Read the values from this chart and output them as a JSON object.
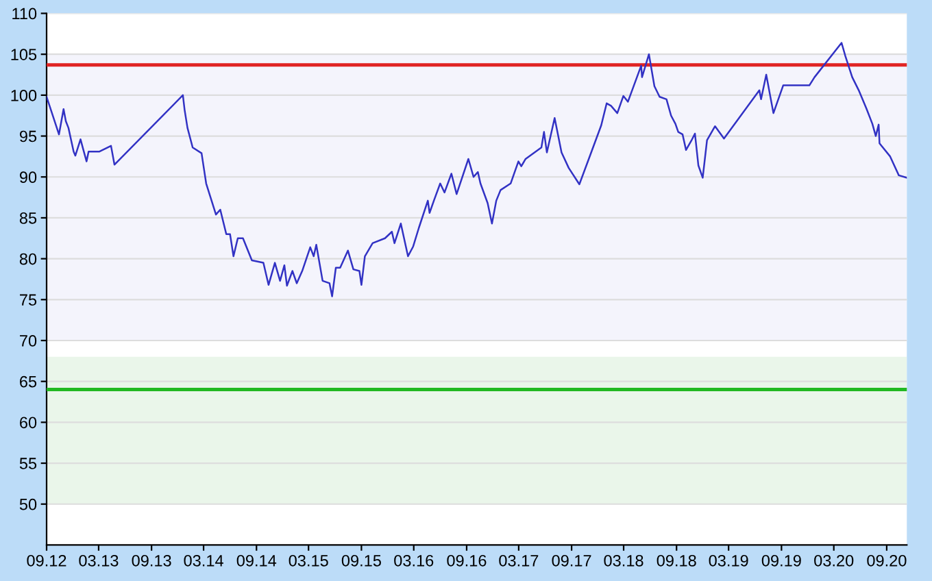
{
  "chart_data": {
    "type": "line",
    "x": [
      "2012-09-01",
      "2012-09-14",
      "2012-10-14",
      "2012-10-30",
      "2012-11-07",
      "2012-11-16",
      "2012-12-04",
      "2012-12-10",
      "2012-12-28",
      "2013-01-07",
      "2013-01-18",
      "2013-01-25",
      "2013-03-04",
      "2013-04-13",
      "2013-04-25",
      "2013-12-19",
      "2013-12-25",
      "2014-01-04",
      "2014-01-22",
      "2014-02-22",
      "2014-03-10",
      "2014-04-13",
      "2014-04-28",
      "2014-05-19",
      "2014-06-01",
      "2014-06-13",
      "2014-06-28",
      "2014-07-16",
      "2014-08-16",
      "2014-09-25",
      "2014-10-13",
      "2014-11-04",
      "2014-11-22",
      "2014-12-07",
      "2014-12-16",
      "2015-01-04",
      "2015-01-19",
      "2015-02-07",
      "2015-03-07",
      "2015-03-19",
      "2015-03-28",
      "2015-04-19",
      "2015-05-13",
      "2015-05-22",
      "2015-06-04",
      "2015-06-19",
      "2015-07-16",
      "2015-08-04",
      "2015-08-25",
      "2015-09-01",
      "2015-09-13",
      "2015-10-10",
      "2015-11-22",
      "2015-12-16",
      "2015-12-25",
      "2016-01-16",
      "2016-02-10",
      "2016-02-28",
      "2016-03-19",
      "2016-04-19",
      "2016-04-25",
      "2016-05-10",
      "2016-06-01",
      "2016-06-16",
      "2016-07-10",
      "2016-07-28",
      "2016-09-07",
      "2016-09-25",
      "2016-10-10",
      "2016-10-19",
      "2016-11-13",
      "2016-11-28",
      "2016-12-13",
      "2016-12-28",
      "2017-02-01",
      "2017-02-28",
      "2017-03-10",
      "2017-03-25",
      "2017-05-19",
      "2017-05-28",
      "2017-06-07",
      "2017-07-04",
      "2017-07-28",
      "2017-08-22",
      "2017-09-28",
      "2017-11-04",
      "2017-12-13",
      "2018-01-01",
      "2018-01-16",
      "2018-02-07",
      "2018-02-28",
      "2018-03-16",
      "2018-05-01",
      "2018-05-04",
      "2018-05-28",
      "2018-06-16",
      "2018-07-04",
      "2018-07-28",
      "2018-08-13",
      "2018-08-28",
      "2018-09-07",
      "2018-09-22",
      "2018-10-04",
      "2018-10-22",
      "2018-11-04",
      "2018-11-16",
      "2018-12-01",
      "2018-12-16",
      "2019-01-13",
      "2019-02-13",
      "2019-06-16",
      "2019-06-22",
      "2019-07-10",
      "2019-08-04",
      "2019-09-07",
      "2019-12-07",
      "2019-12-25",
      "2020-03-28",
      "2020-04-10",
      "2020-05-04",
      "2020-05-28",
      "2020-06-22",
      "2020-07-13",
      "2020-07-25",
      "2020-08-04",
      "2020-08-07",
      "2020-09-13",
      "2020-10-13",
      "2020-11-10"
    ],
    "series": [
      {
        "color": "#3232c4",
        "values": [
          99.8,
          98.4,
          95.2,
          98.3,
          96.8,
          96.0,
          93.1,
          92.6,
          94.6,
          93.3,
          91.9,
          93.1,
          93.1,
          93.8,
          91.5,
          100.0,
          98.2,
          96.0,
          93.6,
          92.9,
          89.2,
          85.4,
          86.0,
          83.0,
          83.0,
          80.3,
          82.5,
          82.5,
          79.8,
          79.5,
          76.8,
          79.5,
          77.3,
          79.2,
          76.7,
          78.5,
          77.0,
          78.5,
          81.4,
          80.3,
          81.7,
          77.3,
          77.0,
          75.4,
          78.9,
          78.9,
          81.0,
          78.7,
          78.5,
          76.8,
          80.3,
          81.9,
          82.5,
          83.3,
          81.9,
          84.3,
          80.3,
          81.5,
          83.8,
          87.1,
          85.6,
          87.1,
          89.2,
          88.1,
          90.4,
          87.9,
          92.2,
          90.0,
          90.6,
          89.2,
          86.8,
          84.3,
          87.1,
          88.4,
          89.2,
          91.9,
          91.3,
          92.2,
          93.6,
          95.5,
          93.0,
          97.2,
          93.0,
          91.1,
          89.1,
          92.6,
          96.3,
          99.0,
          98.7,
          97.8,
          99.9,
          99.2,
          103.6,
          102.2,
          105.0,
          101.1,
          99.8,
          99.5,
          97.5,
          96.5,
          95.5,
          95.2,
          93.3,
          94.4,
          95.3,
          91.4,
          89.9,
          94.5,
          96.2,
          94.7,
          100.6,
          99.5,
          102.5,
          97.8,
          101.2,
          101.2,
          102.2,
          106.4,
          104.8,
          102.2,
          100.5,
          98.4,
          96.5,
          95.0,
          96.4,
          94.1,
          92.5,
          90.2,
          89.9
        ]
      }
    ],
    "xlim": [
      "2012-09-01",
      "2020-11-10"
    ],
    "xticks": [
      {
        "value": "2012-09-01",
        "label": "09.12"
      },
      {
        "value": "2013-03-01",
        "label": "03.13"
      },
      {
        "value": "2013-09-01",
        "label": "09.13"
      },
      {
        "value": "2014-03-01",
        "label": "03.14"
      },
      {
        "value": "2014-09-01",
        "label": "09.14"
      },
      {
        "value": "2015-03-01",
        "label": "03.15"
      },
      {
        "value": "2015-09-01",
        "label": "09.15"
      },
      {
        "value": "2016-03-01",
        "label": "03.16"
      },
      {
        "value": "2016-09-01",
        "label": "09.16"
      },
      {
        "value": "2017-03-01",
        "label": "03.17"
      },
      {
        "value": "2017-09-01",
        "label": "09.17"
      },
      {
        "value": "2018-03-01",
        "label": "03.18"
      },
      {
        "value": "2018-09-01",
        "label": "09.18"
      },
      {
        "value": "2019-03-01",
        "label": "03.19"
      },
      {
        "value": "2019-09-01",
        "label": "09.19"
      },
      {
        "value": "2020-03-01",
        "label": "03.20"
      },
      {
        "value": "2020-09-01",
        "label": "09.20"
      }
    ],
    "ylim": [
      45,
      110
    ],
    "yticks": [
      50,
      55,
      60,
      65,
      70,
      75,
      80,
      85,
      90,
      95,
      100,
      105,
      110
    ],
    "grid": "y",
    "ref_lines": [
      {
        "axis": "y",
        "value": 103.7,
        "color": "#e02424"
      },
      {
        "axis": "y",
        "value": 64,
        "color": "#22b822"
      }
    ],
    "bands": [
      {
        "axis": "y",
        "from": 70,
        "to": 105,
        "color": "#f4f4fc"
      },
      {
        "axis": "y",
        "from": 50,
        "to": 68,
        "color": "#eaf6ea"
      }
    ]
  }
}
